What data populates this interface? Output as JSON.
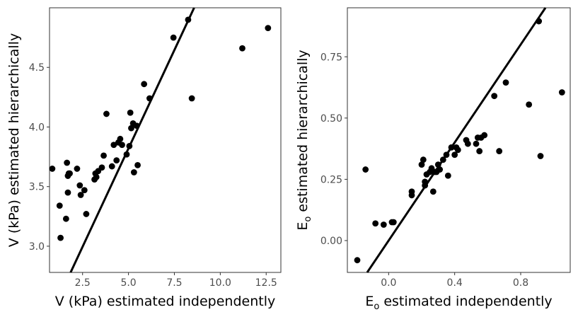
{
  "chart_data": [
    {
      "type": "scatter",
      "title": "",
      "xlabel": "V (kPa) estimated independently",
      "ylabel": "V (kPa) estimated hierarchically",
      "xlim": [
        0.7,
        13.3
      ],
      "ylim": [
        2.78,
        5.0
      ],
      "xticks": [
        2.5,
        5.0,
        7.5,
        10.0,
        12.5
      ],
      "xtick_labels": [
        "2.5",
        "5.0",
        "7.5",
        "10.0",
        "12.5"
      ],
      "yticks": [
        3.0,
        3.5,
        4.0,
        4.5
      ],
      "ytick_labels": [
        "3.0",
        "3.5",
        "4.0",
        "4.5"
      ],
      "grid": false,
      "reference_line": {
        "slope": 0.33,
        "intercept": 2.17
      },
      "x": [
        0.85,
        1.25,
        1.3,
        1.6,
        1.7,
        1.7,
        1.75,
        1.8,
        1.65,
        2.2,
        2.35,
        2.4,
        2.6,
        2.7,
        3.15,
        3.2,
        3.25,
        3.35,
        3.55,
        3.65,
        3.8,
        4.1,
        4.2,
        4.35,
        4.45,
        4.55,
        4.65,
        4.9,
        5.05,
        5.1,
        5.15,
        5.25,
        5.3,
        5.45,
        5.5,
        5.85,
        6.15,
        7.45,
        8.25,
        8.45,
        11.2,
        12.6
      ],
      "y": [
        3.65,
        3.34,
        3.07,
        3.23,
        3.45,
        3.59,
        3.61,
        3.61,
        3.7,
        3.65,
        3.51,
        3.43,
        3.47,
        3.27,
        3.56,
        3.61,
        3.58,
        3.63,
        3.66,
        3.76,
        4.11,
        3.67,
        3.85,
        3.72,
        3.87,
        3.9,
        3.85,
        3.77,
        3.84,
        4.12,
        3.99,
        4.03,
        3.62,
        4.01,
        3.68,
        4.36,
        4.24,
        4.75,
        4.9,
        4.24,
        4.66,
        4.83
      ]
    },
    {
      "type": "scatter",
      "title": "",
      "xlabel_main": "E",
      "xlabel_sub": "o",
      "xlabel_rest": " estimated independently",
      "ylabel_main": "E",
      "ylabel_sub": "o",
      "ylabel_rest": " estimated hierarchically",
      "xlim": [
        -0.25,
        1.1
      ],
      "ylim": [
        -0.13,
        0.95
      ],
      "xticks": [
        0.0,
        0.4,
        0.8
      ],
      "xtick_labels": [
        "0.0",
        "0.4",
        "0.8"
      ],
      "yticks": [
        0.0,
        0.25,
        0.5,
        0.75
      ],
      "ytick_labels": [
        "0.00",
        "0.25",
        "0.50",
        "0.75"
      ],
      "grid": false,
      "reference_line": {
        "slope": 1.0,
        "intercept": 0.0
      },
      "x": [
        -0.19,
        -0.14,
        -0.08,
        -0.03,
        0.02,
        0.03,
        0.14,
        0.14,
        0.2,
        0.21,
        0.22,
        0.22,
        0.23,
        0.25,
        0.26,
        0.27,
        0.28,
        0.29,
        0.3,
        0.31,
        0.33,
        0.35,
        0.36,
        0.38,
        0.4,
        0.41,
        0.42,
        0.47,
        0.48,
        0.53,
        0.54,
        0.55,
        0.56,
        0.58,
        0.64,
        0.67,
        0.71,
        0.85,
        0.91,
        0.92,
        1.05
      ],
      "y": [
        -0.08,
        0.29,
        0.07,
        0.065,
        0.075,
        0.075,
        0.2,
        0.185,
        0.31,
        0.33,
        0.24,
        0.225,
        0.27,
        0.28,
        0.295,
        0.2,
        0.28,
        0.28,
        0.31,
        0.29,
        0.33,
        0.35,
        0.265,
        0.38,
        0.35,
        0.38,
        0.37,
        0.41,
        0.395,
        0.395,
        0.42,
        0.365,
        0.42,
        0.43,
        0.59,
        0.365,
        0.645,
        0.555,
        0.895,
        0.345,
        0.605
      ]
    }
  ]
}
